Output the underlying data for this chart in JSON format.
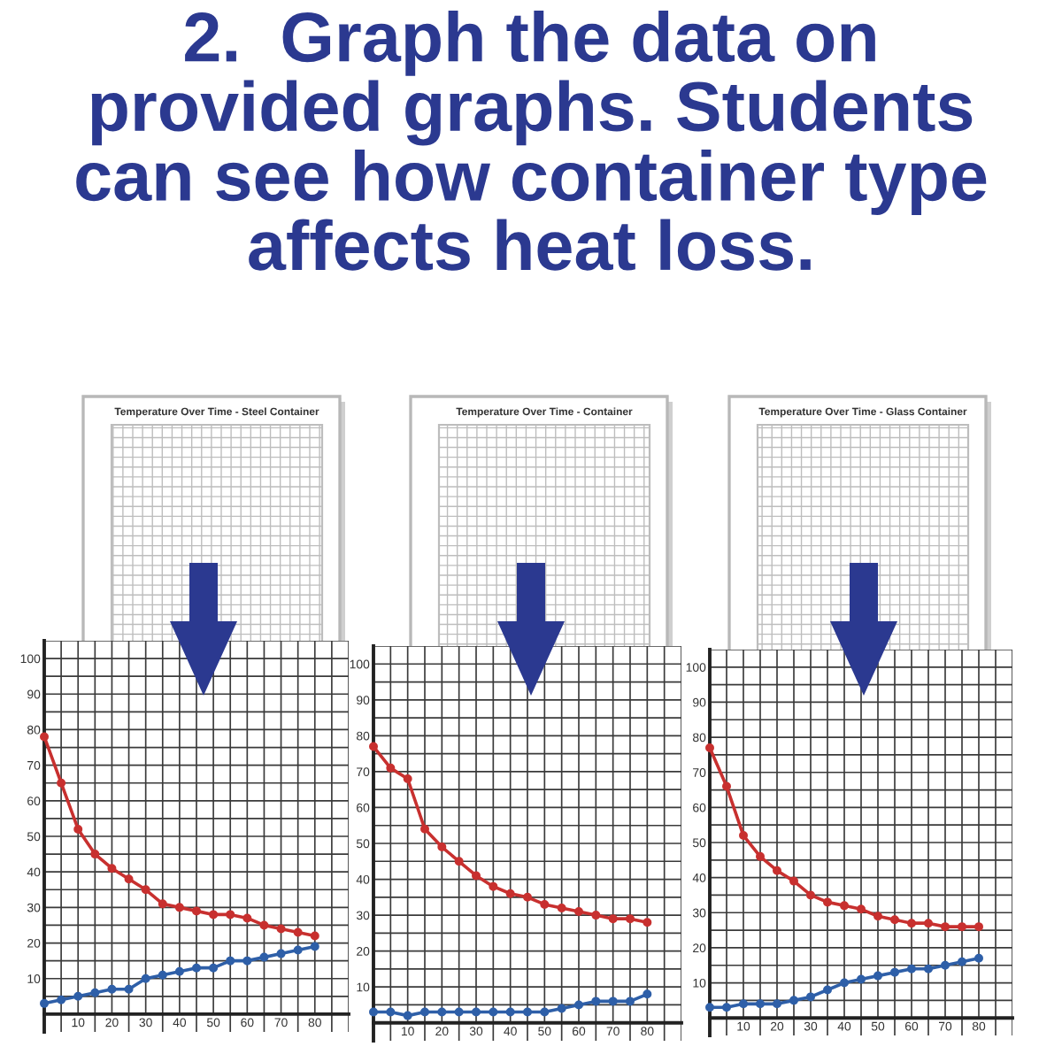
{
  "chart_data": [
    {
      "type": "line",
      "title": "Temperature Over Time - Steel Container",
      "annotations": [
        "2.  Graph the data on\nprovided graphs. Students\ncan see how container type\naffects heat loss."
      ],
      "x": [
        0,
        5,
        10,
        15,
        20,
        25,
        30,
        35,
        40,
        45,
        50,
        55,
        60,
        65,
        70,
        75,
        80
      ],
      "series": [
        {
          "color": "#c8302f",
          "values": [
            78,
            65,
            52,
            45,
            41,
            38,
            35,
            31,
            30,
            29,
            28,
            28,
            27,
            25,
            24,
            23,
            22
          ]
        },
        {
          "color": "#2e5fa8",
          "values": [
            3,
            4,
            5,
            6,
            7,
            7,
            10,
            11,
            12,
            13,
            13,
            15,
            15,
            16,
            17,
            18,
            19
          ]
        }
      ],
      "xlim": [
        0,
        90
      ],
      "ylim": [
        -5,
        105
      ],
      "xticks": [
        {
          "value": 0,
          "label": null
        },
        {
          "value": 5,
          "label": null
        },
        10,
        {
          "value": 15,
          "label": null
        },
        20,
        {
          "value": 25,
          "label": null
        },
        30,
        {
          "value": 35,
          "label": null
        },
        40,
        {
          "value": 45,
          "label": null
        },
        50,
        {
          "value": 55,
          "label": null
        },
        60,
        {
          "value": 65,
          "label": null
        },
        70,
        {
          "value": 75,
          "label": null
        },
        80,
        {
          "value": 85,
          "label": null
        },
        {
          "value": 90,
          "label": null
        }
      ],
      "yticks": [
        {
          "value": 0,
          "label": null
        },
        {
          "value": 5,
          "label": null
        },
        10,
        {
          "value": 15,
          "label": null
        },
        20,
        {
          "value": 25,
          "label": null
        },
        30,
        {
          "value": 35,
          "label": null
        },
        40,
        {
          "value": 45,
          "label": null
        },
        50,
        {
          "value": 55,
          "label": null
        },
        60,
        {
          "value": 65,
          "label": null
        },
        70,
        {
          "value": 75,
          "label": null
        },
        80,
        {
          "value": 85,
          "label": null
        },
        90,
        {
          "value": 95,
          "label": null
        },
        100,
        {
          "value": 105,
          "label": null
        }
      ],
      "grid": true,
      "marker": "circle"
    },
    {
      "type": "line",
      "title": "Temperature Over Time - Container",
      "x": [
        0,
        5,
        10,
        15,
        20,
        25,
        30,
        35,
        40,
        45,
        50,
        55,
        60,
        65,
        70,
        75,
        80
      ],
      "series": [
        {
          "color": "#c8302f",
          "values": [
            77,
            71,
            68,
            54,
            49,
            45,
            41,
            38,
            36,
            35,
            33,
            32,
            31,
            30,
            29,
            29,
            28
          ]
        },
        {
          "color": "#2e5fa8",
          "values": [
            3,
            3,
            2,
            3,
            3,
            3,
            3,
            3,
            3,
            3,
            3,
            4,
            5,
            6,
            6,
            6,
            8
          ]
        }
      ],
      "xlim": [
        0,
        90
      ],
      "ylim": [
        -5,
        105
      ],
      "xticks": [
        {
          "value": 0,
          "label": null
        },
        {
          "value": 5,
          "label": null
        },
        10,
        {
          "value": 15,
          "label": null
        },
        20,
        {
          "value": 25,
          "label": null
        },
        30,
        {
          "value": 35,
          "label": null
        },
        40,
        {
          "value": 45,
          "label": null
        },
        50,
        {
          "value": 55,
          "label": null
        },
        60,
        {
          "value": 65,
          "label": null
        },
        70,
        {
          "value": 75,
          "label": null
        },
        80,
        {
          "value": 85,
          "label": null
        },
        {
          "value": 90,
          "label": null
        }
      ],
      "yticks": [
        {
          "value": 0,
          "label": null
        },
        {
          "value": 5,
          "label": null
        },
        10,
        {
          "value": 15,
          "label": null
        },
        20,
        {
          "value": 25,
          "label": null
        },
        30,
        {
          "value": 35,
          "label": null
        },
        40,
        {
          "value": 45,
          "label": null
        },
        50,
        {
          "value": 55,
          "label": null
        },
        60,
        {
          "value": 65,
          "label": null
        },
        70,
        {
          "value": 75,
          "label": null
        },
        80,
        {
          "value": 85,
          "label": null
        },
        90,
        {
          "value": 95,
          "label": null
        },
        100,
        {
          "value": 105,
          "label": null
        }
      ],
      "grid": true,
      "marker": "circle"
    },
    {
      "type": "line",
      "title": "Temperature Over Time - Glass Container",
      "x": [
        0,
        5,
        10,
        15,
        20,
        25,
        30,
        35,
        40,
        45,
        50,
        55,
        60,
        65,
        70,
        75,
        80
      ],
      "series": [
        {
          "color": "#c8302f",
          "values": [
            77,
            66,
            52,
            46,
            42,
            39,
            35,
            33,
            32,
            31,
            29,
            28,
            27,
            27,
            26,
            26,
            26
          ]
        },
        {
          "color": "#2e5fa8",
          "values": [
            3,
            3,
            4,
            4,
            4,
            5,
            6,
            8,
            10,
            11,
            12,
            13,
            14,
            14,
            15,
            16,
            17
          ]
        }
      ],
      "xlim": [
        0,
        90
      ],
      "ylim": [
        -5,
        105
      ],
      "xticks": [
        {
          "value": 0,
          "label": null
        },
        {
          "value": 5,
          "label": null
        },
        10,
        {
          "value": 15,
          "label": null
        },
        20,
        {
          "value": 25,
          "label": null
        },
        30,
        {
          "value": 35,
          "label": null
        },
        40,
        {
          "value": 45,
          "label": null
        },
        50,
        {
          "value": 55,
          "label": null
        },
        60,
        {
          "value": 65,
          "label": null
        },
        70,
        {
          "value": 75,
          "label": null
        },
        80,
        {
          "value": 85,
          "label": null
        },
        {
          "value": 90,
          "label": null
        }
      ],
      "yticks": [
        {
          "value": 0,
          "label": null
        },
        {
          "value": 5,
          "label": null
        },
        10,
        {
          "value": 15,
          "label": null
        },
        20,
        {
          "value": 25,
          "label": null
        },
        30,
        {
          "value": 35,
          "label": null
        },
        40,
        {
          "value": 45,
          "label": null
        },
        50,
        {
          "value": 55,
          "label": null
        },
        60,
        {
          "value": 65,
          "label": null
        },
        70,
        {
          "value": 75,
          "label": null
        },
        80,
        {
          "value": 85,
          "label": null
        },
        90,
        {
          "value": 95,
          "label": null
        },
        100,
        {
          "value": 105,
          "label": null
        }
      ],
      "grid": true,
      "marker": "circle"
    }
  ]
}
